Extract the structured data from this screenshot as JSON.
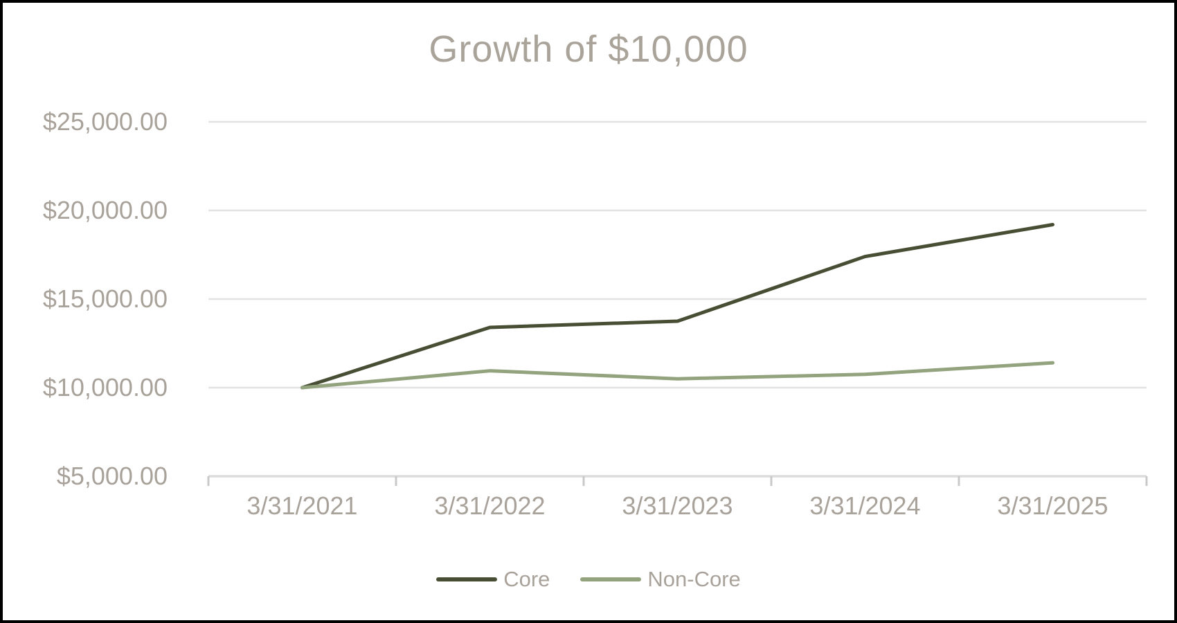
{
  "window": {
    "background": "#ffffff",
    "border_color": "#000000"
  },
  "chart_data": {
    "type": "line",
    "title": "Growth of $10,000",
    "categories": [
      "3/31/2021",
      "3/31/2022",
      "3/31/2023",
      "3/31/2024",
      "3/31/2025"
    ],
    "series": [
      {
        "name": "Core",
        "color": "#484E34",
        "values": [
          10000,
          13400,
          13750,
          17400,
          19200
        ]
      },
      {
        "name": "Non-Core",
        "color": "#92A37E",
        "values": [
          10000,
          10950,
          10500,
          10750,
          11400
        ]
      }
    ],
    "y_axis": {
      "min": 5000,
      "max": 25000,
      "step": 5000,
      "ticks": [
        {
          "value": 25000,
          "label": "$25,000.00"
        },
        {
          "value": 20000,
          "label": "$20,000.00"
        },
        {
          "value": 15000,
          "label": "$15,000.00"
        },
        {
          "value": 10000,
          "label": "$10,000.00"
        },
        {
          "value": 5000,
          "label": "$5,000.00"
        }
      ]
    },
    "grid": true,
    "legend_position": "bottom",
    "colors": {
      "text": "#A8A29A",
      "title": "#A9A39A",
      "gridline": "#E2E2E2",
      "axis": "#DCDCDC",
      "tick": "#C9C9C9"
    }
  }
}
